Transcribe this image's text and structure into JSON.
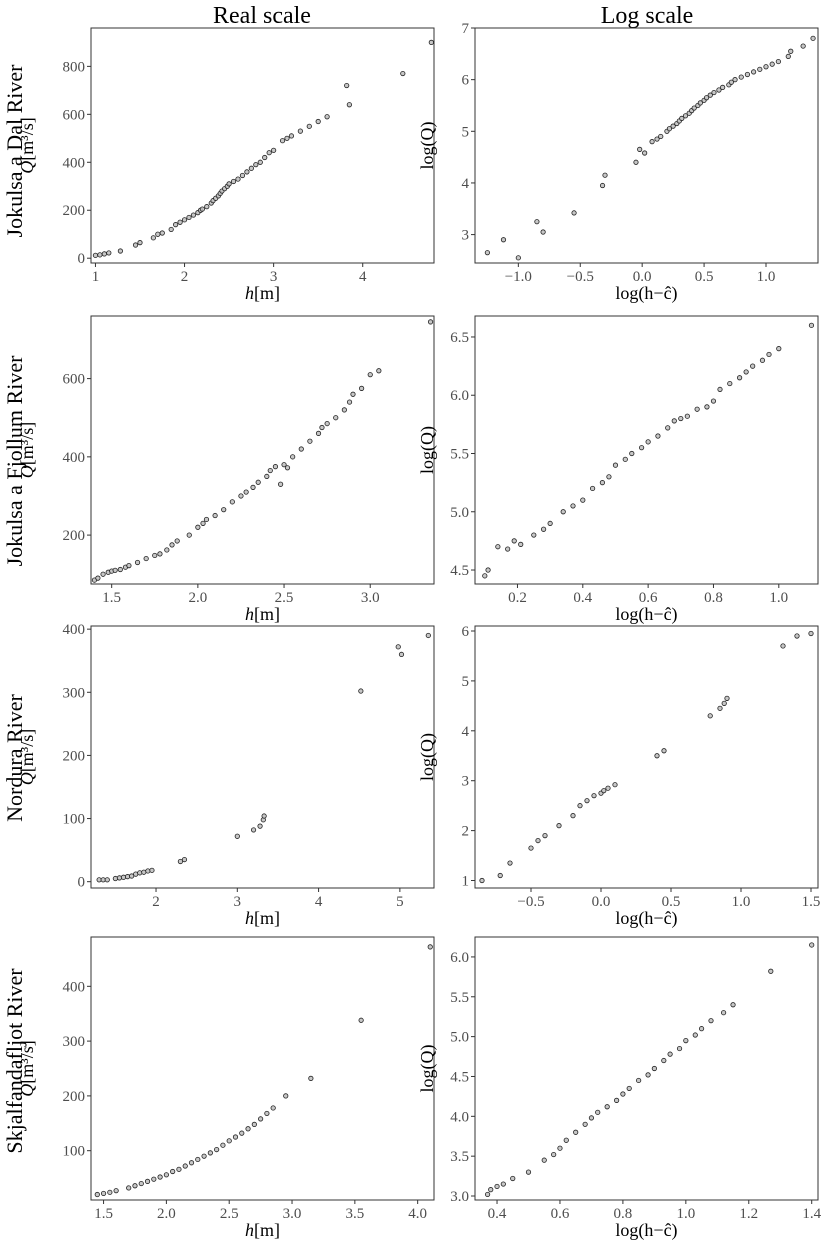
{
  "column_titles": [
    "Real scale",
    "Log scale"
  ],
  "row_titles": [
    "Jokulsa a Dal River",
    "Jokulsa a Fjollum River",
    "Nordura River",
    "Skjalfandafljot River"
  ],
  "axis_labels": {
    "real_x": "h[m]",
    "real_y": "Q[m³/s]",
    "log_x": "log(h−ĉ)",
    "log_y": "log(Q)"
  },
  "chart_data": [
    {
      "type": "scatter",
      "river": "Jokulsa a Dal River",
      "scale": "real",
      "xlabel": "h[m]",
      "ylabel": "Q[m³/s]",
      "xlim": [
        0.95,
        4.8
      ],
      "ylim": [
        -20,
        960
      ],
      "xticks": [
        1,
        2,
        3,
        4
      ],
      "yticks": [
        0,
        200,
        400,
        600,
        800
      ],
      "points": [
        [
          1.0,
          12
        ],
        [
          1.05,
          14
        ],
        [
          1.1,
          18
        ],
        [
          1.15,
          22
        ],
        [
          1.28,
          30
        ],
        [
          1.45,
          55
        ],
        [
          1.5,
          65
        ],
        [
          1.65,
          85
        ],
        [
          1.7,
          100
        ],
        [
          1.75,
          105
        ],
        [
          1.85,
          120
        ],
        [
          1.9,
          140
        ],
        [
          1.95,
          150
        ],
        [
          2.0,
          160
        ],
        [
          2.05,
          170
        ],
        [
          2.1,
          180
        ],
        [
          2.15,
          190
        ],
        [
          2.18,
          200
        ],
        [
          2.2,
          205
        ],
        [
          2.25,
          215
        ],
        [
          2.3,
          230
        ],
        [
          2.32,
          240
        ],
        [
          2.35,
          250
        ],
        [
          2.38,
          260
        ],
        [
          2.4,
          270
        ],
        [
          2.42,
          280
        ],
        [
          2.45,
          290
        ],
        [
          2.48,
          300
        ],
        [
          2.5,
          310
        ],
        [
          2.55,
          320
        ],
        [
          2.6,
          330
        ],
        [
          2.65,
          345
        ],
        [
          2.7,
          360
        ],
        [
          2.75,
          375
        ],
        [
          2.8,
          390
        ],
        [
          2.85,
          400
        ],
        [
          2.9,
          420
        ],
        [
          2.95,
          440
        ],
        [
          3.0,
          450
        ],
        [
          3.1,
          490
        ],
        [
          3.15,
          500
        ],
        [
          3.2,
          510
        ],
        [
          3.3,
          530
        ],
        [
          3.4,
          550
        ],
        [
          3.5,
          570
        ],
        [
          3.6,
          590
        ],
        [
          3.85,
          640
        ],
        [
          3.82,
          720
        ],
        [
          4.45,
          770
        ],
        [
          4.77,
          900
        ]
      ]
    },
    {
      "type": "scatter",
      "river": "Jokulsa a Dal River",
      "scale": "log",
      "xlabel": "log(h−ĉ)",
      "ylabel": "log(Q)",
      "xlim": [
        -1.35,
        1.42
      ],
      "ylim": [
        2.45,
        7.0
      ],
      "xticks": [
        -1.0,
        -0.5,
        0.0,
        0.5,
        1.0
      ],
      "yticks": [
        3,
        4,
        5,
        6,
        7
      ],
      "xticklabels": [
        "−1.0",
        "−0.5",
        "0.0",
        "0.5",
        "1.0"
      ],
      "points": [
        [
          -1.25,
          2.65
        ],
        [
          -1.12,
          2.9
        ],
        [
          -1.0,
          2.55
        ],
        [
          -0.85,
          3.25
        ],
        [
          -0.8,
          3.05
        ],
        [
          -0.55,
          3.42
        ],
        [
          -0.32,
          3.95
        ],
        [
          -0.3,
          4.15
        ],
        [
          -0.05,
          4.4
        ],
        [
          -0.02,
          4.65
        ],
        [
          0.02,
          4.58
        ],
        [
          0.08,
          4.8
        ],
        [
          0.12,
          4.85
        ],
        [
          0.15,
          4.9
        ],
        [
          0.2,
          5.0
        ],
        [
          0.22,
          5.05
        ],
        [
          0.25,
          5.1
        ],
        [
          0.28,
          5.15
        ],
        [
          0.3,
          5.2
        ],
        [
          0.32,
          5.25
        ],
        [
          0.35,
          5.3
        ],
        [
          0.38,
          5.35
        ],
        [
          0.4,
          5.4
        ],
        [
          0.42,
          5.45
        ],
        [
          0.45,
          5.5
        ],
        [
          0.47,
          5.55
        ],
        [
          0.5,
          5.6
        ],
        [
          0.52,
          5.65
        ],
        [
          0.55,
          5.7
        ],
        [
          0.58,
          5.75
        ],
        [
          0.62,
          5.8
        ],
        [
          0.65,
          5.85
        ],
        [
          0.7,
          5.9
        ],
        [
          0.72,
          5.95
        ],
        [
          0.75,
          6.0
        ],
        [
          0.8,
          6.05
        ],
        [
          0.85,
          6.1
        ],
        [
          0.9,
          6.15
        ],
        [
          0.95,
          6.2
        ],
        [
          1.0,
          6.25
        ],
        [
          1.05,
          6.3
        ],
        [
          1.1,
          6.35
        ],
        [
          1.18,
          6.45
        ],
        [
          1.2,
          6.55
        ],
        [
          1.3,
          6.65
        ],
        [
          1.38,
          6.8
        ]
      ]
    },
    {
      "type": "scatter",
      "river": "Jokulsa a Fjollum River",
      "scale": "real",
      "xlabel": "h[m]",
      "ylabel": "Q[m³/s]",
      "xlim": [
        1.38,
        3.37
      ],
      "ylim": [
        75,
        760
      ],
      "xticks": [
        1.5,
        2.0,
        2.5,
        3.0
      ],
      "yticks": [
        200,
        400,
        600
      ],
      "xticklabels": [
        "1.5",
        "2.0",
        "2.5",
        "3.0"
      ],
      "points": [
        [
          1.4,
          85
        ],
        [
          1.42,
          90
        ],
        [
          1.45,
          100
        ],
        [
          1.48,
          105
        ],
        [
          1.5,
          108
        ],
        [
          1.52,
          110
        ],
        [
          1.55,
          112
        ],
        [
          1.58,
          118
        ],
        [
          1.6,
          122
        ],
        [
          1.65,
          130
        ],
        [
          1.7,
          140
        ],
        [
          1.75,
          148
        ],
        [
          1.78,
          152
        ],
        [
          1.82,
          162
        ],
        [
          1.85,
          175
        ],
        [
          1.88,
          185
        ],
        [
          1.95,
          200
        ],
        [
          2.0,
          220
        ],
        [
          2.03,
          230
        ],
        [
          2.05,
          240
        ],
        [
          2.1,
          250
        ],
        [
          2.15,
          265
        ],
        [
          2.2,
          285
        ],
        [
          2.25,
          300
        ],
        [
          2.28,
          310
        ],
        [
          2.32,
          322
        ],
        [
          2.35,
          335
        ],
        [
          2.4,
          350
        ],
        [
          2.42,
          365
        ],
        [
          2.45,
          375
        ],
        [
          2.48,
          330
        ],
        [
          2.5,
          380
        ],
        [
          2.52,
          372
        ],
        [
          2.55,
          400
        ],
        [
          2.6,
          420
        ],
        [
          2.65,
          440
        ],
        [
          2.7,
          460
        ],
        [
          2.72,
          475
        ],
        [
          2.75,
          485
        ],
        [
          2.8,
          500
        ],
        [
          2.85,
          520
        ],
        [
          2.88,
          540
        ],
        [
          2.9,
          560
        ],
        [
          2.95,
          575
        ],
        [
          3.0,
          610
        ],
        [
          3.05,
          620
        ],
        [
          3.35,
          745
        ]
      ]
    },
    {
      "type": "scatter",
      "river": "Jokulsa a Fjollum River",
      "scale": "log",
      "xlabel": "log(h−ĉ)",
      "ylabel": "log(Q)",
      "xlim": [
        0.07,
        1.12
      ],
      "ylim": [
        4.38,
        6.68
      ],
      "xticks": [
        0.2,
        0.4,
        0.6,
        0.8,
        1.0
      ],
      "yticks": [
        4.5,
        5.0,
        5.5,
        6.0,
        6.5
      ],
      "xticklabels": [
        "0.2",
        "0.4",
        "0.6",
        "0.8",
        "1.0"
      ],
      "yticklabels": [
        "4.5",
        "5.0",
        "5.5",
        "6.0",
        "6.5"
      ],
      "points": [
        [
          0.1,
          4.45
        ],
        [
          0.11,
          4.5
        ],
        [
          0.14,
          4.7
        ],
        [
          0.17,
          4.68
        ],
        [
          0.19,
          4.75
        ],
        [
          0.21,
          4.72
        ],
        [
          0.25,
          4.8
        ],
        [
          0.28,
          4.85
        ],
        [
          0.3,
          4.9
        ],
        [
          0.34,
          5.0
        ],
        [
          0.37,
          5.05
        ],
        [
          0.4,
          5.1
        ],
        [
          0.43,
          5.2
        ],
        [
          0.46,
          5.25
        ],
        [
          0.48,
          5.3
        ],
        [
          0.5,
          5.4
        ],
        [
          0.53,
          5.45
        ],
        [
          0.55,
          5.5
        ],
        [
          0.58,
          5.55
        ],
        [
          0.6,
          5.6
        ],
        [
          0.63,
          5.65
        ],
        [
          0.66,
          5.72
        ],
        [
          0.68,
          5.78
        ],
        [
          0.7,
          5.8
        ],
        [
          0.72,
          5.82
        ],
        [
          0.75,
          5.88
        ],
        [
          0.78,
          5.9
        ],
        [
          0.8,
          5.95
        ],
        [
          0.82,
          6.05
        ],
        [
          0.85,
          6.1
        ],
        [
          0.88,
          6.15
        ],
        [
          0.9,
          6.2
        ],
        [
          0.92,
          6.25
        ],
        [
          0.95,
          6.3
        ],
        [
          0.97,
          6.35
        ],
        [
          1.0,
          6.4
        ],
        [
          1.1,
          6.6
        ]
      ]
    },
    {
      "type": "scatter",
      "river": "Nordura River",
      "scale": "real",
      "xlabel": "h[m]",
      "ylabel": "Q[m³/s]",
      "xlim": [
        1.2,
        5.42
      ],
      "ylim": [
        -10,
        405
      ],
      "xticks": [
        2,
        3,
        4,
        5
      ],
      "yticks": [
        0,
        100,
        200,
        300,
        400
      ],
      "points": [
        [
          1.3,
          3
        ],
        [
          1.35,
          3
        ],
        [
          1.4,
          3
        ],
        [
          1.5,
          5
        ],
        [
          1.55,
          6
        ],
        [
          1.6,
          7
        ],
        [
          1.65,
          8
        ],
        [
          1.7,
          9
        ],
        [
          1.75,
          12
        ],
        [
          1.8,
          14
        ],
        [
          1.85,
          15
        ],
        [
          1.9,
          17
        ],
        [
          1.95,
          18
        ],
        [
          2.3,
          32
        ],
        [
          2.35,
          35
        ],
        [
          3.0,
          72
        ],
        [
          3.2,
          82
        ],
        [
          3.28,
          88
        ],
        [
          3.32,
          98
        ],
        [
          3.33,
          104
        ],
        [
          4.52,
          302
        ],
        [
          4.98,
          372
        ],
        [
          5.02,
          360
        ],
        [
          5.35,
          390
        ]
      ]
    },
    {
      "type": "scatter",
      "river": "Nordura River",
      "scale": "log",
      "xlabel": "log(h−ĉ)",
      "ylabel": "log(Q)",
      "xlim": [
        -0.9,
        1.55
      ],
      "ylim": [
        0.85,
        6.1
      ],
      "xticks": [
        -0.5,
        0.0,
        0.5,
        1.0,
        1.5
      ],
      "yticks": [
        1,
        2,
        3,
        4,
        5,
        6
      ],
      "xticklabels": [
        "−0.5",
        "0.0",
        "0.5",
        "1.0",
        "1.5"
      ],
      "points": [
        [
          -0.85,
          1.0
        ],
        [
          -0.72,
          1.1
        ],
        [
          -0.65,
          1.35
        ],
        [
          -0.5,
          1.65
        ],
        [
          -0.45,
          1.8
        ],
        [
          -0.4,
          1.9
        ],
        [
          -0.3,
          2.1
        ],
        [
          -0.2,
          2.3
        ],
        [
          -0.15,
          2.5
        ],
        [
          -0.1,
          2.6
        ],
        [
          -0.05,
          2.7
        ],
        [
          0.0,
          2.75
        ],
        [
          0.02,
          2.8
        ],
        [
          0.05,
          2.85
        ],
        [
          0.1,
          2.92
        ],
        [
          0.4,
          3.5
        ],
        [
          0.45,
          3.6
        ],
        [
          0.78,
          4.3
        ],
        [
          0.85,
          4.45
        ],
        [
          0.88,
          4.55
        ],
        [
          0.9,
          4.65
        ],
        [
          1.3,
          5.7
        ],
        [
          1.4,
          5.9
        ],
        [
          1.5,
          5.95
        ]
      ]
    },
    {
      "type": "scatter",
      "river": "Skjalfandafljot River",
      "scale": "real",
      "xlabel": "h[m]",
      "ylabel": "Q[m³/s]",
      "xlim": [
        1.4,
        4.13
      ],
      "ylim": [
        10,
        490
      ],
      "xticks": [
        1.5,
        2.0,
        2.5,
        3.0,
        3.5,
        4.0
      ],
      "yticks": [
        100,
        200,
        300,
        400
      ],
      "xticklabels": [
        "1.5",
        "2.0",
        "2.5",
        "3.0",
        "3.5",
        "4.0"
      ],
      "points": [
        [
          1.45,
          20
        ],
        [
          1.5,
          22
        ],
        [
          1.55,
          24
        ],
        [
          1.6,
          27
        ],
        [
          1.7,
          32
        ],
        [
          1.75,
          36
        ],
        [
          1.8,
          40
        ],
        [
          1.85,
          44
        ],
        [
          1.9,
          48
        ],
        [
          1.95,
          52
        ],
        [
          2.0,
          56
        ],
        [
          2.05,
          62
        ],
        [
          2.1,
          66
        ],
        [
          2.15,
          72
        ],
        [
          2.2,
          78
        ],
        [
          2.25,
          84
        ],
        [
          2.3,
          90
        ],
        [
          2.35,
          96
        ],
        [
          2.4,
          102
        ],
        [
          2.45,
          110
        ],
        [
          2.5,
          118
        ],
        [
          2.55,
          125
        ],
        [
          2.6,
          132
        ],
        [
          2.65,
          140
        ],
        [
          2.7,
          148
        ],
        [
          2.75,
          158
        ],
        [
          2.8,
          168
        ],
        [
          2.85,
          178
        ],
        [
          2.95,
          200
        ],
        [
          3.15,
          232
        ],
        [
          3.55,
          338
        ],
        [
          4.1,
          472
        ]
      ]
    },
    {
      "type": "scatter",
      "river": "Skjalfandafljot River",
      "scale": "log",
      "xlabel": "log(h−ĉ)",
      "ylabel": "log(Q)",
      "xlim": [
        0.33,
        1.42
      ],
      "ylim": [
        2.95,
        6.25
      ],
      "xticks": [
        0.4,
        0.6,
        0.8,
        1.0,
        1.2,
        1.4
      ],
      "yticks": [
        3.0,
        3.5,
        4.0,
        4.5,
        5.0,
        5.5,
        6.0
      ],
      "xticklabels": [
        "0.4",
        "0.6",
        "0.8",
        "1.0",
        "1.2",
        "1.4"
      ],
      "yticklabels": [
        "3.0",
        "3.5",
        "4.0",
        "4.5",
        "5.0",
        "5.5",
        "6.0"
      ],
      "points": [
        [
          0.37,
          3.02
        ],
        [
          0.38,
          3.08
        ],
        [
          0.4,
          3.12
        ],
        [
          0.42,
          3.15
        ],
        [
          0.45,
          3.22
        ],
        [
          0.5,
          3.3
        ],
        [
          0.55,
          3.45
        ],
        [
          0.58,
          3.52
        ],
        [
          0.6,
          3.6
        ],
        [
          0.62,
          3.7
        ],
        [
          0.65,
          3.8
        ],
        [
          0.68,
          3.9
        ],
        [
          0.7,
          3.98
        ],
        [
          0.72,
          4.05
        ],
        [
          0.75,
          4.12
        ],
        [
          0.78,
          4.2
        ],
        [
          0.8,
          4.28
        ],
        [
          0.82,
          4.35
        ],
        [
          0.85,
          4.45
        ],
        [
          0.88,
          4.52
        ],
        [
          0.9,
          4.6
        ],
        [
          0.93,
          4.7
        ],
        [
          0.95,
          4.78
        ],
        [
          0.98,
          4.85
        ],
        [
          1.0,
          4.95
        ],
        [
          1.03,
          5.02
        ],
        [
          1.05,
          5.1
        ],
        [
          1.08,
          5.2
        ],
        [
          1.12,
          5.3
        ],
        [
          1.15,
          5.4
        ],
        [
          1.27,
          5.82
        ],
        [
          1.4,
          6.15
        ]
      ]
    }
  ]
}
